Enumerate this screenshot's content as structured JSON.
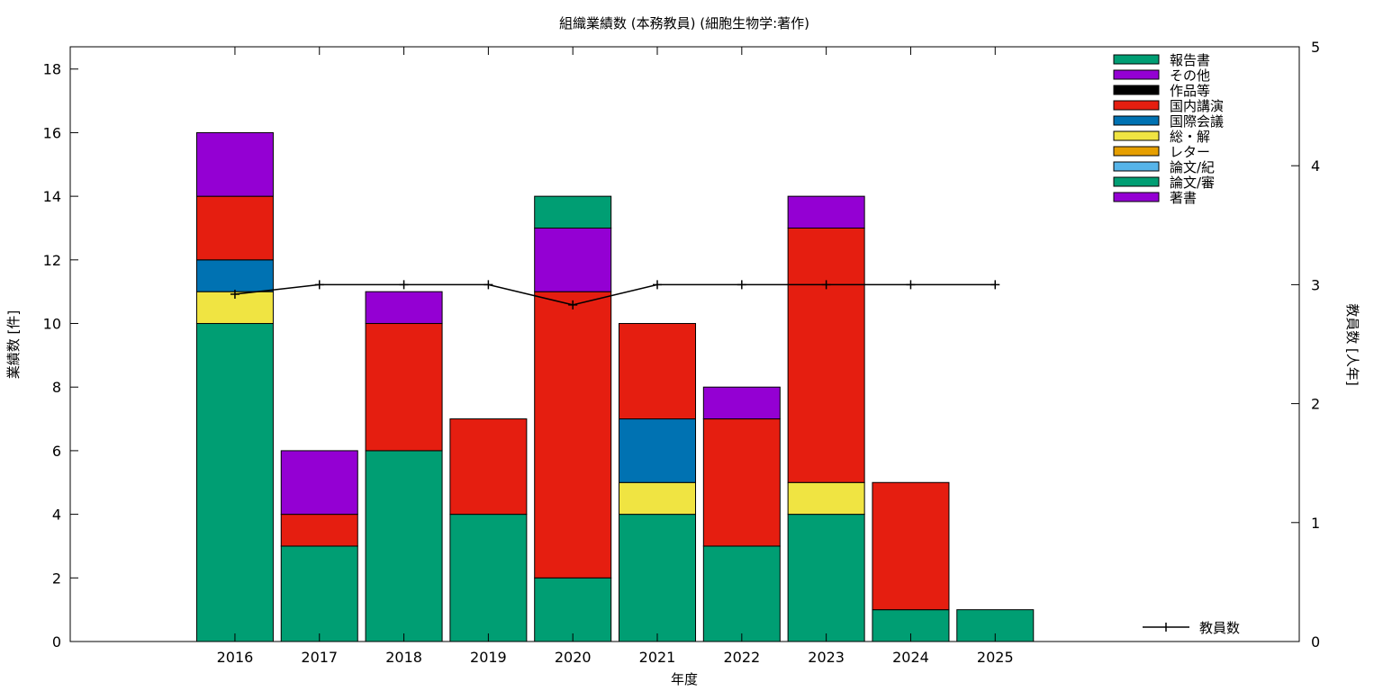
{
  "chart_data": {
    "type": "bar",
    "stacked": true,
    "title": "組織業績数 (本務教員) (細胞生物学:著作)",
    "xlabel": "年度",
    "ylabel": "業績数 [件]",
    "y2label": "教員数 [人年]",
    "ylim": [
      0,
      18.7
    ],
    "y2lim": [
      0,
      5
    ],
    "yticks": [
      0,
      2,
      4,
      6,
      8,
      10,
      12,
      14,
      16,
      18
    ],
    "y2ticks": [
      0,
      1,
      2,
      3,
      4,
      5
    ],
    "categories": [
      "2016",
      "2017",
      "2018",
      "2019",
      "2020",
      "2021",
      "2022",
      "2023",
      "2024",
      "2025"
    ],
    "series": [
      {
        "name": "報告書",
        "color": "#009e73",
        "values": [
          0,
          0,
          0,
          0,
          1,
          0,
          0,
          0,
          0,
          0
        ]
      },
      {
        "name": "その他",
        "color": "#9400d3",
        "values": [
          2,
          2,
          1,
          0,
          2,
          0,
          1,
          1,
          0,
          0
        ]
      },
      {
        "name": "作品等",
        "color": "#000000",
        "values": [
          0,
          0,
          0,
          0,
          0,
          0,
          0,
          0,
          0,
          0
        ]
      },
      {
        "name": "国内講演",
        "color": "#e51e10",
        "values": [
          2,
          1,
          4,
          3,
          9,
          3,
          4,
          8,
          4,
          0
        ]
      },
      {
        "name": "国際会議",
        "color": "#0072b2",
        "values": [
          1,
          0,
          0,
          0,
          0,
          2,
          0,
          0,
          0,
          0
        ]
      },
      {
        "name": "総・解",
        "color": "#f0e442",
        "values": [
          1,
          0,
          0,
          0,
          0,
          1,
          0,
          1,
          0,
          0
        ]
      },
      {
        "name": "レター",
        "color": "#e69f00",
        "values": [
          0,
          0,
          0,
          0,
          0,
          0,
          0,
          0,
          0,
          0
        ]
      },
      {
        "name": "論文/紀",
        "color": "#56b4e9",
        "values": [
          0,
          0,
          0,
          0,
          0,
          0,
          0,
          0,
          0,
          0
        ]
      },
      {
        "name": "論文/審",
        "color": "#009e73",
        "values": [
          10,
          3,
          6,
          4,
          2,
          4,
          3,
          4,
          1,
          1
        ]
      },
      {
        "name": "著書",
        "color": "#9400d3",
        "values": [
          0,
          0,
          0,
          0,
          0,
          0,
          0,
          0,
          0,
          0
        ]
      }
    ],
    "line_series": {
      "name": "教員数",
      "axis": "y2",
      "color": "#000000",
      "values": [
        2.92,
        3,
        3,
        3,
        2.83,
        3,
        3,
        3,
        3,
        3
      ]
    },
    "legend_position": "top-right",
    "grid": false
  }
}
